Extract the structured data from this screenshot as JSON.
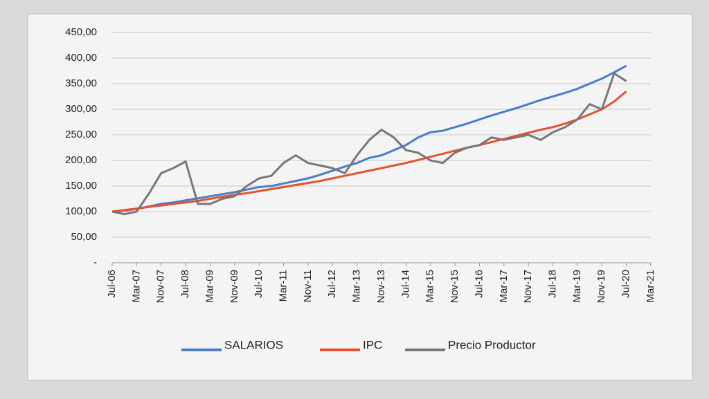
{
  "chart_data": {
    "type": "line",
    "categories": [
      "Jul-06",
      null,
      "Mar-07",
      null,
      "Nov-07",
      null,
      "Jul-08",
      null,
      "Mar-09",
      null,
      "Nov-09",
      null,
      "Jul-10",
      null,
      "Mar-11",
      null,
      "Nov-11",
      null,
      "Jul-12",
      null,
      "Mar-13",
      null,
      "Nov-13",
      null,
      "Jul-14",
      null,
      "Mar-15",
      null,
      "Nov-15",
      null,
      "Jul-16",
      null,
      "Mar-17",
      null,
      "Nov-17",
      null,
      "Jul-18",
      null,
      "Mar-19",
      null,
      "Nov-19",
      null,
      "Jul-20",
      null,
      "Mar-21"
    ],
    "series": [
      {
        "name": "SALARIOS",
        "color": "#4a7cc9",
        "values": [
          100,
          102,
          105,
          110,
          115,
          118,
          122,
          126,
          130,
          134,
          138,
          143,
          148,
          150,
          155,
          160,
          165,
          172,
          180,
          188,
          195,
          205,
          210,
          220,
          230,
          245,
          255,
          258,
          265,
          272,
          280,
          288,
          295,
          302,
          310,
          318,
          325,
          332,
          340,
          350,
          360,
          372,
          385,
          null,
          null
        ]
      },
      {
        "name": "IPC",
        "color": "#e4532b",
        "values": [
          100,
          103,
          106,
          109,
          112,
          115,
          118,
          121,
          125,
          129,
          133,
          136,
          140,
          144,
          148,
          152,
          156,
          160,
          165,
          170,
          175,
          180,
          185,
          190,
          195,
          201,
          207,
          213,
          219,
          225,
          230,
          236,
          242,
          248,
          254,
          260,
          265,
          272,
          280,
          290,
          300,
          315,
          335,
          null,
          null
        ]
      },
      {
        "name": "Precio Productor",
        "color": "#7a7678",
        "values": [
          100,
          95,
          100,
          135,
          175,
          185,
          198,
          115,
          115,
          125,
          130,
          150,
          165,
          170,
          195,
          210,
          195,
          190,
          185,
          175,
          210,
          240,
          260,
          245,
          220,
          215,
          200,
          195,
          215,
          225,
          230,
          245,
          240,
          245,
          250,
          240,
          255,
          265,
          280,
          310,
          300,
          370,
          355,
          null,
          null
        ]
      }
    ],
    "ylim": [
      0,
      450
    ],
    "yticks": [
      {
        "value": 0,
        "label": "-"
      },
      {
        "value": 50,
        "label": "50,00"
      },
      {
        "value": 100,
        "label": "100,00"
      },
      {
        "value": 150,
        "label": "150,00"
      },
      {
        "value": 200,
        "label": "200,00"
      },
      {
        "value": 250,
        "label": "250,00"
      },
      {
        "value": 300,
        "label": "300,00"
      },
      {
        "value": 350,
        "label": "350,00"
      },
      {
        "value": 400,
        "label": "400,00"
      },
      {
        "value": 450,
        "label": "450,00"
      }
    ],
    "grid": true,
    "legend": "bottom"
  }
}
